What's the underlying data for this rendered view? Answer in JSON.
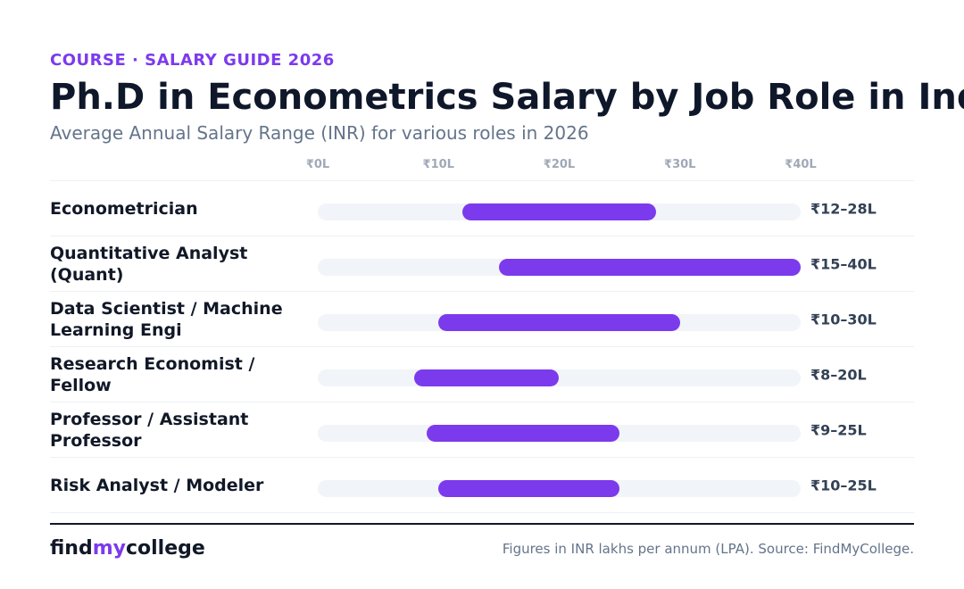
{
  "header": {
    "eyebrow": "COURSE · SALARY GUIDE 2026",
    "title": "Ph.D in Econometrics Salary by Job Role in India",
    "subtitle": "Average Annual Salary Range (INR) for various roles in 2026"
  },
  "chart_data": {
    "type": "bar",
    "orientation": "horizontal-range",
    "unit": "INR lakhs per annum",
    "xlim": [
      0,
      40
    ],
    "ticks": [
      {
        "value": 0,
        "label": "₹0L"
      },
      {
        "value": 10,
        "label": "₹10L"
      },
      {
        "value": 20,
        "label": "₹20L"
      },
      {
        "value": 30,
        "label": "₹30L"
      },
      {
        "value": 40,
        "label": "₹40L"
      }
    ],
    "categories": [
      "Econometrician",
      "Quantitative Analyst (Quant)",
      "Data Scientist / Machine Learning Engi",
      "Research Economist / Fellow",
      "Professor / Assistant Professor",
      "Risk Analyst / Modeler"
    ],
    "ranges": [
      {
        "min": 12,
        "max": 28,
        "label": "₹12–28L"
      },
      {
        "min": 15,
        "max": 40,
        "label": "₹15–40L"
      },
      {
        "min": 10,
        "max": 30,
        "label": "₹10–30L"
      },
      {
        "min": 8,
        "max": 20,
        "label": "₹8–20L"
      },
      {
        "min": 9,
        "max": 25,
        "label": "₹9–25L"
      },
      {
        "min": 10,
        "max": 25,
        "label": "₹10–25L"
      }
    ],
    "bar_color": "#7c3aed",
    "track_color": "#f1f4f8",
    "grid": false
  },
  "footer": {
    "brand_part1": "find",
    "brand_part2": "my",
    "brand_part3": "college",
    "source": "Figures in INR lakhs per annum (LPA). Source: FindMyCollege."
  }
}
